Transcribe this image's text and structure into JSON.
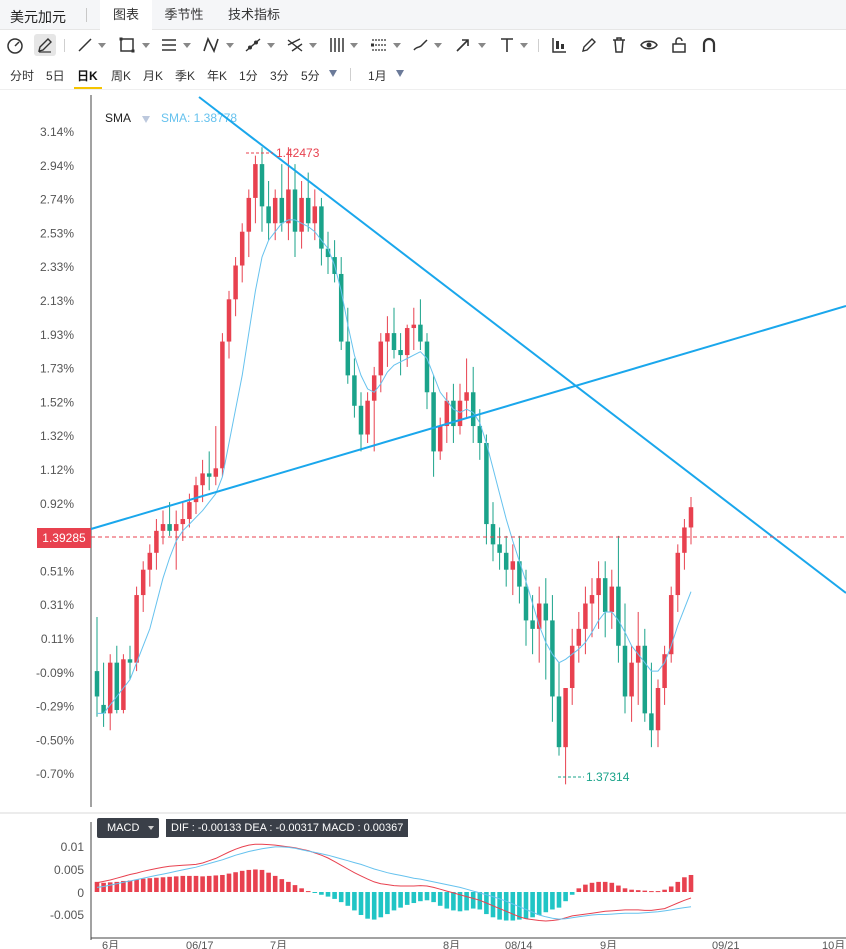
{
  "header": {
    "symbol": "美元加元",
    "tabs": [
      {
        "label": "图表",
        "active": true
      },
      {
        "label": "季节性",
        "active": false
      },
      {
        "label": "技术指标",
        "active": false
      }
    ]
  },
  "toolbar": {
    "icons": [
      "gauge-icon",
      "pen-icon",
      "line-icon",
      "rectangle-icon",
      "lines-icon",
      "zigzag-icon",
      "trend-icon",
      "fork-icon",
      "vertical-lines-icon",
      "channel-icon",
      "brush-icon",
      "arrow-icon",
      "text-icon",
      "chart-type-icon",
      "draw-icon",
      "trash-icon",
      "eye-icon",
      "lock-icon",
      "magnet-icon"
    ]
  },
  "periods": {
    "items": [
      "分时",
      "5日",
      "日K",
      "周K",
      "月K",
      "季K",
      "年K",
      "1分",
      "3分",
      "5分"
    ],
    "active": "日K",
    "range": "1月"
  },
  "main_chart": {
    "indicator": "SMA",
    "indicator_value": "SMA: 1.38778",
    "y_ticks": [
      "3.14%",
      "2.94%",
      "2.74%",
      "2.53%",
      "2.33%",
      "2.13%",
      "1.93%",
      "1.73%",
      "1.52%",
      "1.32%",
      "1.12%",
      "0.92%",
      "0.72%",
      "0.51%",
      "0.31%",
      "0.11%",
      "-0.09%",
      "-0.29%",
      "-0.50%",
      "-0.70%"
    ],
    "current_price": "1.39285",
    "high_label": "1.42473",
    "low_label": "1.37314",
    "colors": {
      "up": "#e8414f",
      "down": "#1aa38a",
      "sma": "#66c2ee",
      "trendline": "#1aa7ec"
    }
  },
  "macd": {
    "label": "MACD",
    "info": "DIF : -0.00133  DEA : -0.00317  MACD : 0.00367",
    "y_ticks": [
      "0.01",
      "0.005",
      "0",
      "-0.005"
    ],
    "colors": {
      "dif": "#e8414f",
      "dea": "#66c2ee",
      "hist_up": "#e8414f",
      "hist_down": "#20c5c5"
    }
  },
  "x_axis": {
    "labels": [
      "6月",
      "06/17",
      "7月",
      "8月",
      "08/14",
      "9月",
      "09/21",
      "10月"
    ]
  },
  "chart_data": {
    "type": "candlestick",
    "y_range_pct": [
      -0.8,
      3.2
    ],
    "candles_ohlc_pct": [
      [
        -0.05,
        0.27,
        -0.32,
        -0.2
      ],
      [
        -0.25,
        0.0,
        -0.38,
        -0.3
      ],
      [
        -0.3,
        0.05,
        -0.4,
        0.0
      ],
      [
        0.0,
        0.1,
        -0.3,
        -0.28
      ],
      [
        -0.28,
        0.05,
        -0.3,
        0.02
      ],
      [
        0.02,
        0.1,
        -0.1,
        0.0
      ],
      [
        0.0,
        0.45,
        -0.05,
        0.4
      ],
      [
        0.4,
        0.6,
        0.3,
        0.55
      ],
      [
        0.55,
        0.7,
        0.45,
        0.65
      ],
      [
        0.65,
        0.85,
        0.55,
        0.78
      ],
      [
        0.78,
        0.9,
        0.7,
        0.82
      ],
      [
        0.82,
        0.95,
        0.75,
        0.78
      ],
      [
        0.78,
        0.9,
        0.55,
        0.82
      ],
      [
        0.82,
        0.95,
        0.72,
        0.85
      ],
      [
        0.85,
        1.0,
        0.8,
        0.95
      ],
      [
        0.95,
        1.1,
        0.88,
        1.05
      ],
      [
        1.05,
        1.2,
        0.95,
        1.12
      ],
      [
        1.12,
        1.25,
        1.02,
        1.1
      ],
      [
        1.1,
        1.4,
        1.05,
        1.15
      ],
      [
        1.15,
        1.95,
        1.1,
        1.9
      ],
      [
        1.9,
        2.2,
        1.8,
        2.15
      ],
      [
        2.15,
        2.4,
        2.05,
        2.35
      ],
      [
        2.35,
        2.6,
        2.25,
        2.55
      ],
      [
        2.55,
        2.8,
        2.4,
        2.75
      ],
      [
        2.75,
        3.0,
        2.6,
        2.95
      ],
      [
        2.95,
        3.05,
        2.55,
        2.7
      ],
      [
        2.7,
        2.85,
        2.5,
        2.6
      ],
      [
        2.6,
        2.8,
        2.5,
        2.75
      ],
      [
        2.75,
        2.95,
        2.55,
        2.6
      ],
      [
        2.6,
        3.05,
        2.5,
        2.8
      ],
      [
        2.8,
        2.95,
        2.4,
        2.55
      ],
      [
        2.55,
        2.85,
        2.45,
        2.75
      ],
      [
        2.75,
        2.9,
        2.55,
        2.6
      ],
      [
        2.6,
        2.8,
        2.5,
        2.7
      ],
      [
        2.7,
        2.75,
        2.35,
        2.45
      ],
      [
        2.45,
        2.55,
        2.3,
        2.4
      ],
      [
        2.4,
        2.5,
        2.25,
        2.3
      ],
      [
        2.3,
        2.4,
        1.85,
        1.9
      ],
      [
        1.9,
        2.1,
        1.65,
        1.7
      ],
      [
        1.7,
        1.8,
        1.45,
        1.52
      ],
      [
        1.52,
        1.6,
        1.25,
        1.35
      ],
      [
        1.35,
        1.6,
        1.3,
        1.55
      ],
      [
        1.55,
        1.75,
        1.25,
        1.7
      ],
      [
        1.7,
        1.95,
        1.6,
        1.9
      ],
      [
        1.9,
        2.05,
        1.75,
        1.95
      ],
      [
        1.95,
        2.1,
        1.8,
        1.85
      ],
      [
        1.85,
        1.95,
        1.7,
        1.82
      ],
      [
        1.82,
        2.0,
        1.75,
        1.98
      ],
      [
        1.98,
        2.1,
        1.85,
        2.0
      ],
      [
        2.0,
        2.15,
        1.85,
        1.9
      ],
      [
        1.9,
        1.95,
        1.5,
        1.6
      ],
      [
        1.6,
        1.7,
        1.1,
        1.25
      ],
      [
        1.25,
        1.45,
        1.2,
        1.4
      ],
      [
        1.4,
        1.6,
        1.3,
        1.55
      ],
      [
        1.55,
        1.65,
        1.3,
        1.4
      ],
      [
        1.4,
        1.65,
        1.35,
        1.55
      ],
      [
        1.55,
        1.8,
        1.45,
        1.6
      ],
      [
        1.6,
        1.75,
        1.3,
        1.4
      ],
      [
        1.4,
        1.5,
        1.2,
        1.3
      ],
      [
        1.3,
        1.35,
        0.7,
        0.82
      ],
      [
        0.82,
        0.95,
        0.6,
        0.7
      ],
      [
        0.7,
        0.8,
        0.55,
        0.65
      ],
      [
        0.65,
        0.75,
        0.45,
        0.55
      ],
      [
        0.55,
        0.7,
        0.4,
        0.6
      ],
      [
        0.6,
        0.75,
        0.35,
        0.45
      ],
      [
        0.45,
        0.55,
        0.1,
        0.25
      ],
      [
        0.25,
        0.4,
        0.05,
        0.2
      ],
      [
        0.2,
        0.45,
        0.0,
        0.35
      ],
      [
        0.35,
        0.5,
        -0.1,
        0.25
      ],
      [
        0.25,
        0.4,
        -0.35,
        -0.2
      ],
      [
        -0.2,
        0.0,
        -0.55,
        -0.5
      ],
      [
        -0.5,
        -0.15,
        -0.72,
        -0.15
      ],
      [
        -0.15,
        0.2,
        -0.25,
        0.1
      ],
      [
        0.1,
        0.3,
        0.0,
        0.2
      ],
      [
        0.2,
        0.45,
        0.05,
        0.35
      ],
      [
        0.35,
        0.5,
        0.15,
        0.4
      ],
      [
        0.4,
        0.6,
        0.2,
        0.5
      ],
      [
        0.5,
        0.6,
        0.15,
        0.3
      ],
      [
        0.3,
        0.55,
        0.2,
        0.45
      ],
      [
        0.45,
        0.75,
        0.0,
        0.1
      ],
      [
        0.1,
        0.35,
        -0.3,
        -0.2
      ],
      [
        -0.2,
        0.1,
        -0.35,
        0.0
      ],
      [
        0.0,
        0.3,
        -0.25,
        0.1
      ],
      [
        0.1,
        0.2,
        -0.35,
        -0.3
      ],
      [
        -0.3,
        0.0,
        -0.5,
        -0.4
      ],
      [
        -0.4,
        -0.1,
        -0.5,
        -0.15
      ],
      [
        -0.15,
        0.1,
        -0.25,
        0.05
      ],
      [
        0.05,
        0.45,
        0.0,
        0.4
      ],
      [
        0.4,
        0.7,
        0.3,
        0.65
      ],
      [
        0.65,
        0.85,
        0.55,
        0.8
      ],
      [
        0.8,
        0.98,
        0.7,
        0.92
      ]
    ],
    "sma_pct": [
      -0.3,
      -0.3,
      -0.25,
      -0.2,
      -0.15,
      -0.1,
      0.0,
      0.1,
      0.2,
      0.35,
      0.5,
      0.62,
      0.72,
      0.78,
      0.82,
      0.86,
      0.9,
      0.95,
      1.0,
      1.1,
      1.3,
      1.5,
      1.7,
      1.95,
      2.2,
      2.4,
      2.5,
      2.55,
      2.6,
      2.62,
      2.62,
      2.6,
      2.58,
      2.55,
      2.5,
      2.45,
      2.35,
      2.2,
      2.0,
      1.82,
      1.7,
      1.62,
      1.6,
      1.65,
      1.72,
      1.76,
      1.78,
      1.8,
      1.82,
      1.84,
      1.8,
      1.7,
      1.6,
      1.55,
      1.5,
      1.48,
      1.5,
      1.48,
      1.42,
      1.3,
      1.15,
      1.0,
      0.85,
      0.72,
      0.6,
      0.48,
      0.35,
      0.22,
      0.12,
      0.05,
      0.0,
      0.02,
      0.05,
      0.08,
      0.12,
      0.18,
      0.25,
      0.3,
      0.3,
      0.25,
      0.18,
      0.1,
      0.05,
      0.0,
      -0.05,
      -0.05,
      0.0,
      0.1,
      0.22,
      0.32,
      0.42
    ],
    "macd_hist": [
      0.0022,
      0.002,
      0.0021,
      0.0022,
      0.0024,
      0.0025,
      0.0027,
      0.0029,
      0.003,
      0.0031,
      0.0032,
      0.0033,
      0.0034,
      0.0035,
      0.0035,
      0.0035,
      0.0034,
      0.0035,
      0.0036,
      0.0037,
      0.004,
      0.0043,
      0.0046,
      0.0048,
      0.0049,
      0.0048,
      0.0042,
      0.0035,
      0.0028,
      0.0022,
      0.0015,
      0.0008,
      0.0002,
      -0.0002,
      -0.0006,
      -0.001,
      -0.0015,
      -0.0022,
      -0.003,
      -0.004,
      -0.005,
      -0.0058,
      -0.006,
      -0.0055,
      -0.0048,
      -0.004,
      -0.0034,
      -0.0028,
      -0.0024,
      -0.002,
      -0.0018,
      -0.0022,
      -0.003,
      -0.0036,
      -0.004,
      -0.0042,
      -0.004,
      -0.0036,
      -0.0038,
      -0.0048,
      -0.0055,
      -0.006,
      -0.0062,
      -0.0062,
      -0.006,
      -0.0058,
      -0.0055,
      -0.005,
      -0.0044,
      -0.0038,
      -0.0034,
      -0.002,
      -0.0006,
      0.0008,
      0.0016,
      0.002,
      0.0022,
      0.0022,
      0.002,
      0.0014,
      0.0008,
      0.0005,
      0.0004,
      0.0003,
      0.0002,
      0.0002,
      0.0005,
      0.0012,
      0.0022,
      0.0032,
      0.0037
    ],
    "dif": [
      0.002,
      0.0023,
      0.0026,
      0.003,
      0.0034,
      0.0038,
      0.0041,
      0.0045,
      0.0048,
      0.0051,
      0.0054,
      0.0056,
      0.0057,
      0.0058,
      0.0059,
      0.006,
      0.0063,
      0.0068,
      0.0073,
      0.008,
      0.0087,
      0.0093,
      0.0098,
      0.0102,
      0.0104,
      0.0104,
      0.0103,
      0.0102,
      0.01,
      0.0098,
      0.0096,
      0.0093,
      0.009,
      0.0085,
      0.008,
      0.0074,
      0.0066,
      0.0058,
      0.005,
      0.0042,
      0.0035,
      0.0028,
      0.0022,
      0.0018,
      0.0016,
      0.0014,
      0.0013,
      0.0013,
      0.0013,
      0.0014,
      0.0013,
      0.001,
      0.0006,
      0.0002,
      -0.0002,
      -0.0006,
      -0.001,
      -0.0014,
      -0.0018,
      -0.0024,
      -0.003,
      -0.0036,
      -0.0042,
      -0.0048,
      -0.0054,
      -0.0058,
      -0.006,
      -0.0062,
      -0.0063,
      -0.0062,
      -0.006,
      -0.0056,
      -0.0052,
      -0.005,
      -0.0048,
      -0.0046,
      -0.0044,
      -0.0042,
      -0.0041,
      -0.004,
      -0.0039,
      -0.0039,
      -0.0039,
      -0.004,
      -0.004,
      -0.0038,
      -0.0036,
      -0.003,
      -0.0024,
      -0.0018,
      -0.0013
    ],
    "dea": [
      0.001,
      0.0012,
      0.0015,
      0.0018,
      0.0021,
      0.0024,
      0.0027,
      0.003,
      0.0033,
      0.0036,
      0.0039,
      0.0042,
      0.0045,
      0.0048,
      0.0051,
      0.0054,
      0.0058,
      0.0062,
      0.0066,
      0.007,
      0.0075,
      0.008,
      0.0084,
      0.0088,
      0.0091,
      0.0094,
      0.0096,
      0.0098,
      0.0098,
      0.0097,
      0.0095,
      0.0092,
      0.0089,
      0.0086,
      0.0083,
      0.008,
      0.0076,
      0.0072,
      0.0068,
      0.0064,
      0.006,
      0.0055,
      0.005,
      0.0046,
      0.0042,
      0.0039,
      0.0036,
      0.0033,
      0.003,
      0.0028,
      0.0025,
      0.0022,
      0.0019,
      0.0016,
      0.0013,
      0.001,
      0.0006,
      0.0002,
      -0.0002,
      -0.0006,
      -0.001,
      -0.0015,
      -0.002,
      -0.0026,
      -0.0032,
      -0.0038,
      -0.0044,
      -0.005,
      -0.0054,
      -0.0057,
      -0.0059,
      -0.0058,
      -0.0056,
      -0.0054,
      -0.0052,
      -0.005,
      -0.0049,
      -0.0049,
      -0.0048,
      -0.0047,
      -0.0046,
      -0.0046,
      -0.0046,
      -0.0045,
      -0.0044,
      -0.0043,
      -0.0041,
      -0.0039,
      -0.0036,
      -0.0034,
      -0.0032
    ]
  }
}
